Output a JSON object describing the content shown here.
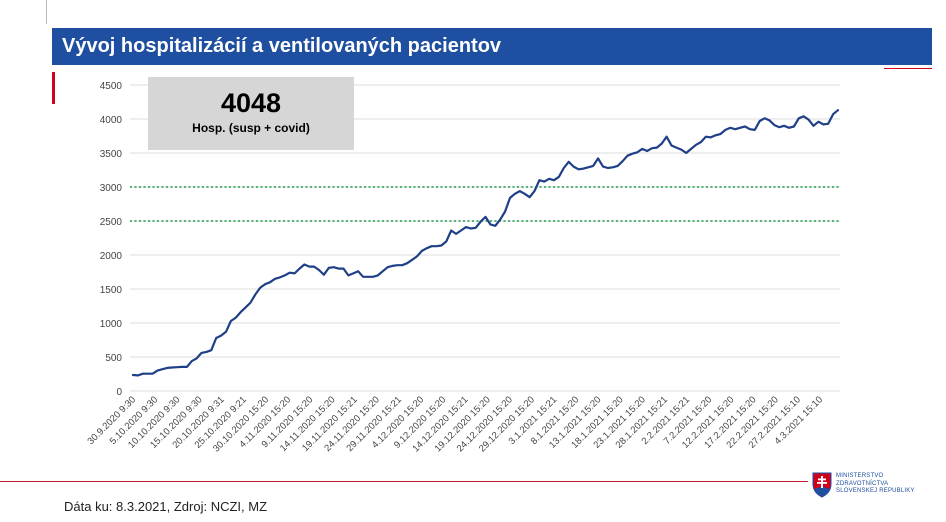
{
  "header": {
    "title": "Vývoj hospitalizácií a ventilovaných pacientov"
  },
  "summary": {
    "value": "4048",
    "label": "Hosp. (susp + covid)"
  },
  "footer": {
    "source": "Dáta ku: 8.3.2021, Zdroj: NCZI, MZ"
  },
  "logo": {
    "line1": "MINISTERSTVO",
    "line2": "ZDRAVOTNÍCTVA",
    "line3": "SLOVENSKEJ REPUBLIKY"
  },
  "colors": {
    "title_bar": "#1e4fa0",
    "series": "#1f3f87",
    "threshold": "#1a9a4a",
    "accent_red": "#d0021b"
  },
  "chart_data": {
    "type": "line",
    "title": "",
    "xlabel": "",
    "ylabel": "",
    "ylim": [
      0,
      4500
    ],
    "yticks": [
      0,
      500,
      1000,
      1500,
      2000,
      2500,
      3000,
      3500,
      4000,
      4500
    ],
    "grid": true,
    "x_tick_labels": [
      "30.9.2020 9:30",
      "5.10.2020 9:30",
      "10.10.2020 9:30",
      "15.10.2020 9:30",
      "20.10.2020 9:31",
      "25.10.2020 9:21",
      "30.10.2020 15:20",
      "4.11.2020 15:20",
      "9.11.2020 15:20",
      "14.11.2020 15:20",
      "19.11.2020 15:21",
      "24.11.2020 15:20",
      "29.11.2020 15:21",
      "4.12.2020 15:20",
      "9.12.2020 15:20",
      "14.12.2020 15:21",
      "19.12.2020 15:20",
      "24.12.2020 15:20",
      "29.12.2020 15:20",
      "3.1.2021 15:21",
      "8.1.2021 15:20",
      "13.1.2021 15:20",
      "18.1.2021 15:20",
      "23.1.2021 15:20",
      "28.1.2021 15:21",
      "2.2.2021 15:21",
      "7.2.2021 15:20",
      "12.2.2021 15:20",
      "17.2.2021 15:20",
      "22.2.2021 15:20",
      "27.2.2021 15:10",
      "4.3.2021 15:10"
    ],
    "threshold_lines": [
      3000,
      2500
    ],
    "series": [
      {
        "values": [
          235,
          230,
          255,
          255,
          255,
          300,
          320,
          340,
          345,
          350,
          355,
          355,
          440,
          480,
          560,
          575,
          600,
          780,
          815,
          870,
          1030,
          1080,
          1160,
          1230,
          1300,
          1420,
          1520,
          1570,
          1600,
          1650,
          1670,
          1700,
          1740,
          1730,
          1800,
          1860,
          1830,
          1830,
          1780,
          1710,
          1810,
          1820,
          1800,
          1800,
          1700,
          1730,
          1760,
          1680,
          1680,
          1680,
          1700,
          1760,
          1820,
          1840,
          1850,
          1850,
          1880,
          1930,
          1980,
          2060,
          2100,
          2130,
          2130,
          2140,
          2200,
          2360,
          2310,
          2360,
          2410,
          2390,
          2400,
          2490,
          2560,
          2450,
          2430,
          2520,
          2640,
          2840,
          2900,
          2940,
          2900,
          2850,
          2940,
          3100,
          3080,
          3120,
          3100,
          3150,
          3280,
          3370,
          3300,
          3260,
          3270,
          3290,
          3310,
          3420,
          3300,
          3280,
          3290,
          3310,
          3380,
          3460,
          3490,
          3510,
          3560,
          3530,
          3570,
          3580,
          3640,
          3740,
          3610,
          3580,
          3550,
          3500,
          3560,
          3620,
          3660,
          3740,
          3730,
          3760,
          3780,
          3840,
          3870,
          3850,
          3870,
          3890,
          3850,
          3840,
          3970,
          4010,
          3980,
          3910,
          3880,
          3900,
          3870,
          3890,
          4010,
          4040,
          3990,
          3900,
          3960,
          3920,
          3930,
          4070,
          4130
        ]
      }
    ]
  }
}
